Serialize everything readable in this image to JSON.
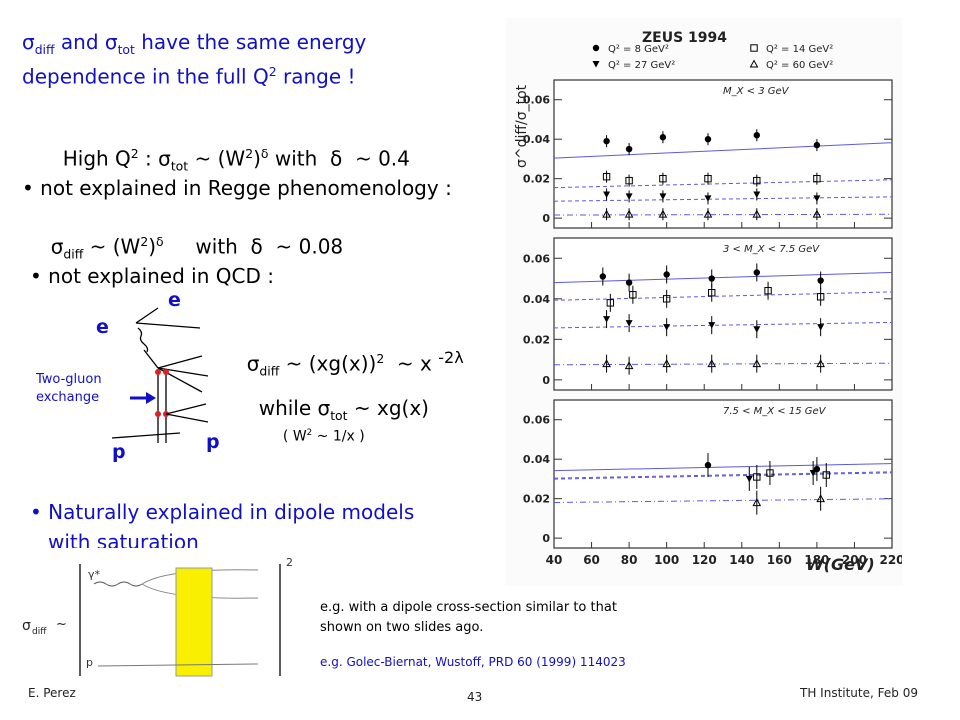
{
  "slide": {
    "heading_line1": {
      "sigma": "σ",
      "diff": "diff",
      "and": " and ",
      "sigma2": "σ",
      "tot": "tot",
      "rest": " have the same energy"
    },
    "heading_line2": {
      "text": "dependence in the full Q",
      "sup": "2",
      "rest": " range !"
    },
    "highq": {
      "a": "High Q",
      "sup1": "2",
      "b": " : σ",
      "sub1": "tot",
      "c": " ~ (W",
      "sup2": "2",
      "d": ")",
      "sup3": "δ",
      "e": " with  δ  ~ 0.4"
    },
    "regge_bullet": "• not explained in Regge phenomenology :",
    "regge_formula": {
      "a": "σ",
      "sub": "diff",
      "b": " ~ (W",
      "sup1": "2",
      "c": ")",
      "sup2": "δ",
      "d": "     with  δ  ~ 0.08"
    },
    "qcd_bullet": "• not explained in QCD :",
    "qcd_formula": {
      "a": "σ",
      "sub": "diff",
      "b": " ~ (xg(x))",
      "sup": "2",
      "c": "  ~ x ",
      "exp": "-2λ"
    },
    "tot_formula": {
      "a": "while σ",
      "sub": "tot",
      "b": " ~ xg(x)"
    },
    "w2_note": {
      "a": "( W",
      "sup": "2",
      "b": " ~ 1/x )"
    },
    "diagram": {
      "e_top": "e",
      "e_left": "e",
      "p_left": "p",
      "p_right": "p",
      "gluon_label_1": "Two-gluon",
      "gluon_label_2": "exchange"
    },
    "dipole_bullet_1": "• Naturally explained in dipole models",
    "dipole_bullet_2": "with saturation",
    "dipole_formula": {
      "sigma": "σ",
      "sub": "diff",
      "tilde": "~",
      "gamma": "γ*",
      "p": "p",
      "power": "2"
    },
    "note1_line1": "e.g. with a dipole cross-section similar to that",
    "note1_line2": "shown on two slides ago.",
    "note2": "e.g. Golec-Biernat, Wustoff, PRD 60 (1999) 114023",
    "footer_left": "E. Perez",
    "footer_center": "43",
    "footer_right": "TH Institute, Feb 09"
  },
  "chart_data": {
    "type": "scatter",
    "title": "ZEUS 1994",
    "xlabel": "W(GeV)",
    "ylabel": "σ^diff/σ_tot",
    "xlim": [
      40,
      220
    ],
    "x_ticks": [
      "40",
      "60",
      "80",
      "100",
      "120",
      "140",
      "160",
      "180",
      "200",
      "220"
    ],
    "legend": [
      "Q² = 8 GeV²",
      "Q² = 14 GeV²",
      "Q² = 27 GeV²",
      "Q² = 60 GeV²"
    ],
    "legend_placement": "top",
    "panels": [
      {
        "label": "M_X < 3 GeV",
        "ylim": [
          -0.005,
          0.07
        ],
        "y_ticks": [
          "0",
          "0.02",
          "0.04",
          "0.06"
        ],
        "series": [
          {
            "name": "Q² = 8 GeV²",
            "marker": "filled-circle",
            "x": [
              68,
              80,
              98,
              122,
              148,
              180
            ],
            "y": [
              0.039,
              0.035,
              0.041,
              0.04,
              0.042,
              0.037
            ]
          },
          {
            "name": "Q² = 14 GeV²",
            "marker": "open-square",
            "x": [
              68,
              80,
              98,
              122,
              148,
              180
            ],
            "y": [
              0.021,
              0.019,
              0.02,
              0.02,
              0.019,
              0.02
            ]
          },
          {
            "name": "Q² = 27 GeV²",
            "marker": "filled-triangle-down",
            "x": [
              68,
              80,
              98,
              122,
              148,
              180
            ],
            "y": [
              0.012,
              0.011,
              0.011,
              0.01,
              0.012,
              0.01
            ]
          },
          {
            "name": "Q² = 60 GeV²",
            "marker": "open-triangle",
            "x": [
              68,
              80,
              98,
              122,
              148,
              180
            ],
            "y": [
              0.002,
              0.002,
              0.002,
              0.002,
              0.002,
              0.002
            ]
          }
        ]
      },
      {
        "label": "3 < M_X < 7.5 GeV",
        "ylim": [
          -0.005,
          0.07
        ],
        "y_ticks": [
          "0",
          "0.02",
          "0.04",
          "0.06"
        ],
        "series": [
          {
            "name": "Q² = 8 GeV²",
            "marker": "filled-circle",
            "x": [
              66,
              80,
              100,
              124,
              148,
              182
            ],
            "y": [
              0.051,
              0.048,
              0.052,
              0.05,
              0.053,
              0.049
            ]
          },
          {
            "name": "Q² = 14 GeV²",
            "marker": "open-square",
            "x": [
              70,
              82,
              100,
              124,
              154,
              182
            ],
            "y": [
              0.038,
              0.042,
              0.04,
              0.043,
              0.044,
              0.041
            ]
          },
          {
            "name": "Q² = 27 GeV²",
            "marker": "filled-triangle-down",
            "x": [
              68,
              80,
              100,
              124,
              148,
              182
            ],
            "y": [
              0.03,
              0.028,
              0.026,
              0.027,
              0.025,
              0.026
            ]
          },
          {
            "name": "Q² = 60 GeV²",
            "marker": "open-triangle",
            "x": [
              68,
              80,
              100,
              124,
              148,
              182
            ],
            "y": [
              0.008,
              0.007,
              0.008,
              0.008,
              0.008,
              0.008
            ]
          }
        ]
      },
      {
        "label": "7.5 < M_X < 15 GeV",
        "ylim": [
          -0.005,
          0.07
        ],
        "y_ticks": [
          "0",
          "0.02",
          "0.04",
          "0.06"
        ],
        "series": [
          {
            "name": "Q² = 8 GeV²",
            "marker": "filled-circle",
            "x": [
              122,
              180
            ],
            "y": [
              0.037,
              0.035
            ]
          },
          {
            "name": "Q² = 14 GeV²",
            "marker": "open-square",
            "x": [
              148,
              155,
              185
            ],
            "y": [
              0.031,
              0.033,
              0.032
            ]
          },
          {
            "name": "Q² = 27 GeV²",
            "marker": "filled-triangle-down",
            "x": [
              144,
              178
            ],
            "y": [
              0.03,
              0.033
            ]
          },
          {
            "name": "Q² = 60 GeV²",
            "marker": "open-triangle",
            "x": [
              148,
              182
            ],
            "y": [
              0.018,
              0.02
            ]
          }
        ]
      }
    ],
    "colors": {
      "curve": "#5a5ae0",
      "marker": "#000000"
    }
  }
}
